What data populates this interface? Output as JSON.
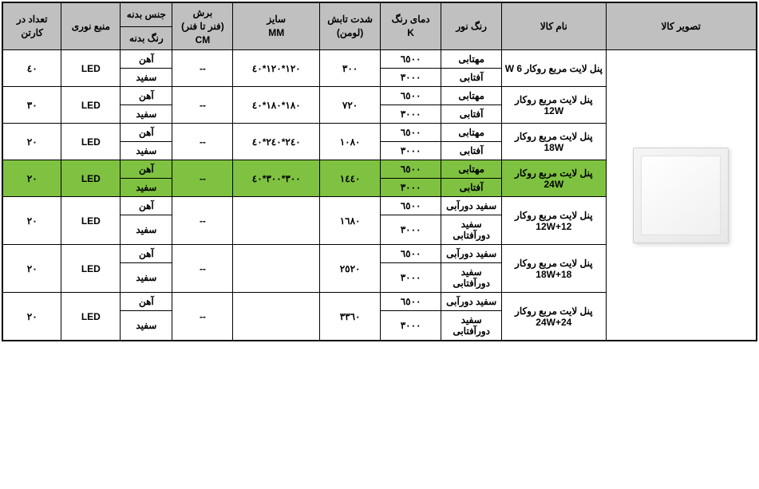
{
  "headers": {
    "image": "تصویر کالا",
    "name": "نام کالا",
    "lightColor": "رنگ نور",
    "colorTemp": "دمای رنگ\nK",
    "lumen": "شدت تابش\n(لومن)",
    "size": "سایز\nMM",
    "cut": "برش\n(فنر تا فنر)\nCM",
    "bodyMaterial": "جنس بدنه",
    "bodyColor": "رنگ بدنه",
    "lightSource": "منبع نوری",
    "qty": "تعداد در کارتن"
  },
  "rows": [
    {
      "name": "پنل لایت مربع روکار 6 W",
      "colors": [
        "مهتابی",
        "آفتابی"
      ],
      "temps": [
        "٦٥٠٠",
        "٣٠٠٠"
      ],
      "lumen": "٣٠٠",
      "size": "١٢٠*١٢٠*٤٠",
      "cut": "--",
      "bodyMaterial": "آهن",
      "bodyColor": "سفید",
      "source": "LED",
      "qty": "٤٠",
      "highlight": false
    },
    {
      "name": "پنل لایت مربع روکار 12W",
      "colors": [
        "مهتابی",
        "آفتابی"
      ],
      "temps": [
        "٦٥٠٠",
        "٣٠٠٠"
      ],
      "lumen": "٧٢٠",
      "size": "١٨٠*١٨٠*٤٠",
      "cut": "--",
      "bodyMaterial": "آهن",
      "bodyColor": "سفید",
      "source": "LED",
      "qty": "٣٠",
      "highlight": false
    },
    {
      "name": "پنل لایت مربع روکار 18W",
      "colors": [
        "مهتابی",
        "آفتابی"
      ],
      "temps": [
        "٦٥٠٠",
        "٣٠٠٠"
      ],
      "lumen": "١٠٨٠",
      "size": "٢٤٠*٢٤٠*٤٠",
      "cut": "--",
      "bodyMaterial": "آهن",
      "bodyColor": "سفید",
      "source": "LED",
      "qty": "٢٠",
      "highlight": false
    },
    {
      "name": "پنل لایت مربع روکار 24W",
      "colors": [
        "مهتابی",
        "آفتابی"
      ],
      "temps": [
        "٦٥٠٠",
        "٣٠٠٠"
      ],
      "lumen": "١٤٤٠",
      "size": "٣٠٠*٣٠٠*٤٠",
      "cut": "--",
      "bodyMaterial": "آهن",
      "bodyColor": "سفید",
      "source": "LED",
      "qty": "٢٠",
      "highlight": true
    },
    {
      "name": "پنل لایت مربع روکار 12+12W",
      "colors": [
        "سفید دورآبی",
        "سفید دورآفتابی"
      ],
      "temps": [
        "٦٥٠٠",
        "٣٠٠٠"
      ],
      "lumen": "١٦٨٠",
      "size": "",
      "cut": "--",
      "bodyMaterial": "آهن",
      "bodyColor": "سفید",
      "source": "LED",
      "qty": "٢٠",
      "highlight": false
    },
    {
      "name": "پنل لایت مربع روکار 18+18W",
      "colors": [
        "سفید دورآبی",
        "سفید دورآفتابی"
      ],
      "temps": [
        "٦٥٠٠",
        "٣٠٠٠"
      ],
      "lumen": "٢٥٢٠",
      "size": "",
      "cut": "--",
      "bodyMaterial": "آهن",
      "bodyColor": "سفید",
      "source": "LED",
      "qty": "٢٠",
      "highlight": false
    },
    {
      "name": "پنل لایت مربع روکار 24+24W",
      "colors": [
        "سفید دورآبی",
        "سفید دورآفتابی"
      ],
      "temps": [
        "٦٥٠٠",
        "٣٠٠٠"
      ],
      "lumen": "٣٣٦٠",
      "size": "",
      "cut": "--",
      "bodyMaterial": "آهن",
      "bodyColor": "سفید",
      "source": "LED",
      "qty": "٢٠",
      "highlight": false
    }
  ],
  "styling": {
    "headerBg": "#c0c0c0",
    "highlightBg": "#7fc241",
    "borderColor": "#000000",
    "fontSize": 12
  }
}
